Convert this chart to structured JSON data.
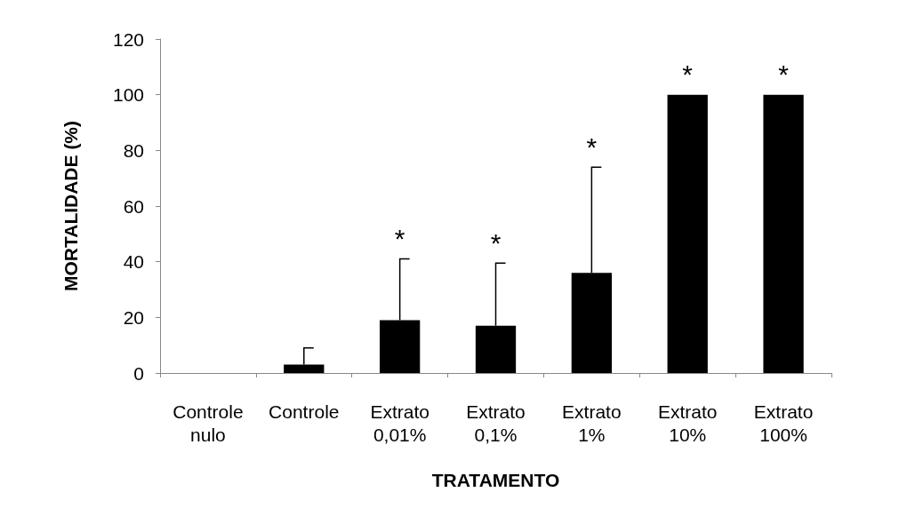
{
  "chart_data": {
    "type": "bar",
    "xlabel": "TRATAMENTO",
    "ylabel": "MORTALIDADE (%)",
    "categories": [
      "Controle nulo",
      "Controle",
      "Extrato 0,01%",
      "Extrato 0,1%",
      "Extrato 1%",
      "Extrato 10%",
      "Extrato 100%"
    ],
    "values": [
      0,
      3,
      19,
      17,
      36,
      100,
      100
    ],
    "errors": [
      null,
      [
        3,
        9
      ],
      [
        19,
        41
      ],
      [
        17,
        39.5
      ],
      [
        36,
        74
      ],
      null,
      null
    ],
    "color": "#000000",
    "ylim": [
      0,
      120
    ],
    "yticks": [
      0,
      20,
      40,
      60,
      80,
      100,
      120
    ],
    "grid": false,
    "annotations": [
      "*",
      "*",
      "*",
      "*",
      "*"
    ]
  }
}
